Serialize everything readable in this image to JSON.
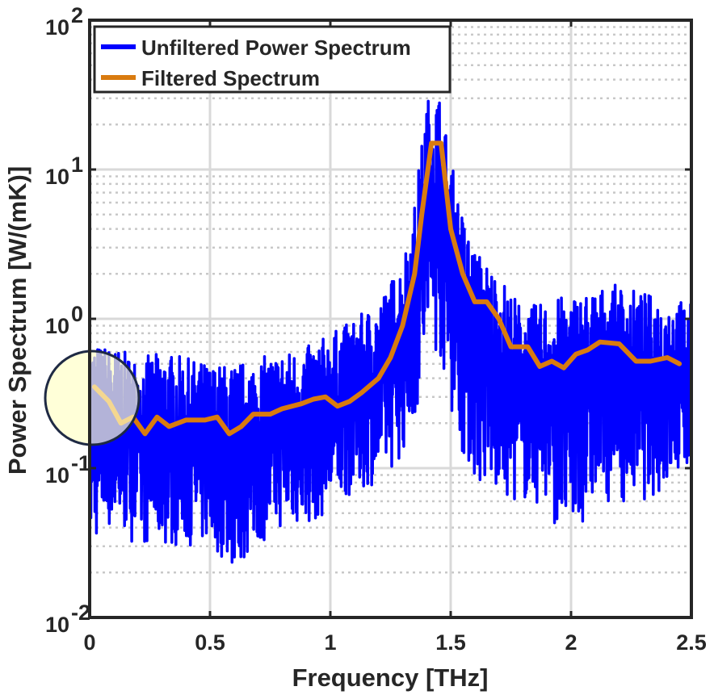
{
  "chart_data": {
    "type": "line",
    "title": "",
    "xlabel": "Frequency [THz]",
    "ylabel": "Power Spectrum [W/(mK)]",
    "xlim": [
      0,
      2.5
    ],
    "ylim": [
      0.01,
      100
    ],
    "yscale": "log",
    "xticks": [
      0,
      0.5,
      1,
      1.5,
      2,
      2.5
    ],
    "xtick_labels": [
      "0",
      "0.5",
      "1",
      "1.5",
      "2",
      "2.5"
    ],
    "ytick_labels": [
      {
        "base": "10",
        "exp": "-2"
      },
      {
        "base": "10",
        "exp": "-1"
      },
      {
        "base": "10",
        "exp": "0"
      },
      {
        "base": "10",
        "exp": "1"
      },
      {
        "base": "10",
        "exp": "2"
      }
    ],
    "grid": true,
    "legend_position": "top-left",
    "series": [
      {
        "name": "Unfiltered Power Spectrum",
        "color": "#0000ff",
        "style": "noisy-envelope",
        "x": [
          0,
          0.1,
          0.2,
          0.3,
          0.4,
          0.5,
          0.6,
          0.7,
          0.8,
          0.9,
          1.0,
          1.1,
          1.2,
          1.3,
          1.35,
          1.4,
          1.45,
          1.5,
          1.55,
          1.6,
          1.7,
          1.8,
          1.9,
          2.0,
          2.1,
          2.2,
          2.3,
          2.4,
          2.5
        ],
        "upper": [
          0.7,
          0.65,
          0.55,
          0.6,
          0.55,
          0.5,
          0.5,
          0.55,
          0.6,
          0.65,
          0.8,
          1.0,
          1.3,
          2.5,
          6,
          30,
          35,
          12,
          5,
          3,
          2,
          1.2,
          1.3,
          1.5,
          1.6,
          1.7,
          1.5,
          1.4,
          1.3
        ],
        "lower": [
          0.03,
          0.04,
          0.03,
          0.03,
          0.03,
          0.03,
          0.02,
          0.03,
          0.04,
          0.04,
          0.05,
          0.07,
          0.08,
          0.12,
          0.2,
          0.5,
          0.6,
          0.25,
          0.12,
          0.08,
          0.06,
          0.06,
          0.05,
          0.03,
          0.06,
          0.06,
          0.06,
          0.07,
          0.1
        ]
      },
      {
        "name": "Filtered Spectrum",
        "color": "#d97b0f",
        "x": [
          0.02,
          0.08,
          0.13,
          0.18,
          0.23,
          0.28,
          0.33,
          0.4,
          0.48,
          0.53,
          0.58,
          0.63,
          0.68,
          0.75,
          0.8,
          0.88,
          0.93,
          0.98,
          1.03,
          1.08,
          1.13,
          1.2,
          1.25,
          1.3,
          1.35,
          1.38,
          1.42,
          1.46,
          1.5,
          1.55,
          1.6,
          1.65,
          1.7,
          1.75,
          1.82,
          1.87,
          1.92,
          1.97,
          2.02,
          2.07,
          2.12,
          2.2,
          2.27,
          2.33,
          2.4,
          2.45
        ],
        "y": [
          0.35,
          0.28,
          0.2,
          0.22,
          0.17,
          0.22,
          0.19,
          0.21,
          0.21,
          0.22,
          0.17,
          0.19,
          0.23,
          0.23,
          0.25,
          0.27,
          0.29,
          0.3,
          0.26,
          0.28,
          0.32,
          0.4,
          0.55,
          0.9,
          2.0,
          5.0,
          15,
          15,
          4,
          2.0,
          1.3,
          1.3,
          1.0,
          0.65,
          0.65,
          0.48,
          0.52,
          0.47,
          0.58,
          0.62,
          0.7,
          0.68,
          0.52,
          0.52,
          0.55,
          0.5
        ]
      }
    ]
  },
  "colors": {
    "axis": "#262626",
    "grid_major": "#d9d9d9",
    "grid_minor": "#c8c8c8",
    "highlight_fill": "#ffffc8",
    "highlight_stroke": "#1f2a44"
  }
}
